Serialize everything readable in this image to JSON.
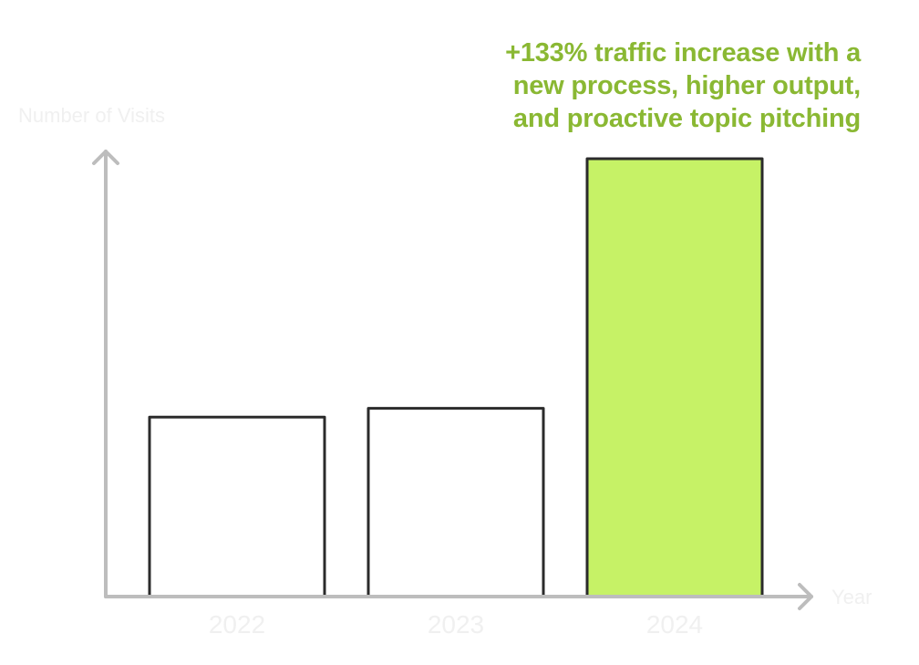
{
  "chart_data": {
    "type": "bar",
    "categories": [
      "2022",
      "2023",
      "2024"
    ],
    "values": [
      41,
      43,
      100
    ],
    "ylim": [
      0,
      100
    ],
    "xlabel": "Year",
    "ylabel": "Number of Visits",
    "grid": false,
    "annotation": [
      "+133% traffic increase with a",
      "new process, higher output,",
      "and proactive topic pitching"
    ],
    "colors": {
      "highlight_fill": "#c6f266",
      "default_fill": "#ffffff",
      "bar_stroke": "#2b2b2b",
      "axis": "#bdbdbd",
      "annotation_text": "#8ab833",
      "tick_text": "#f0f0f0"
    },
    "highlight_index": 2
  }
}
